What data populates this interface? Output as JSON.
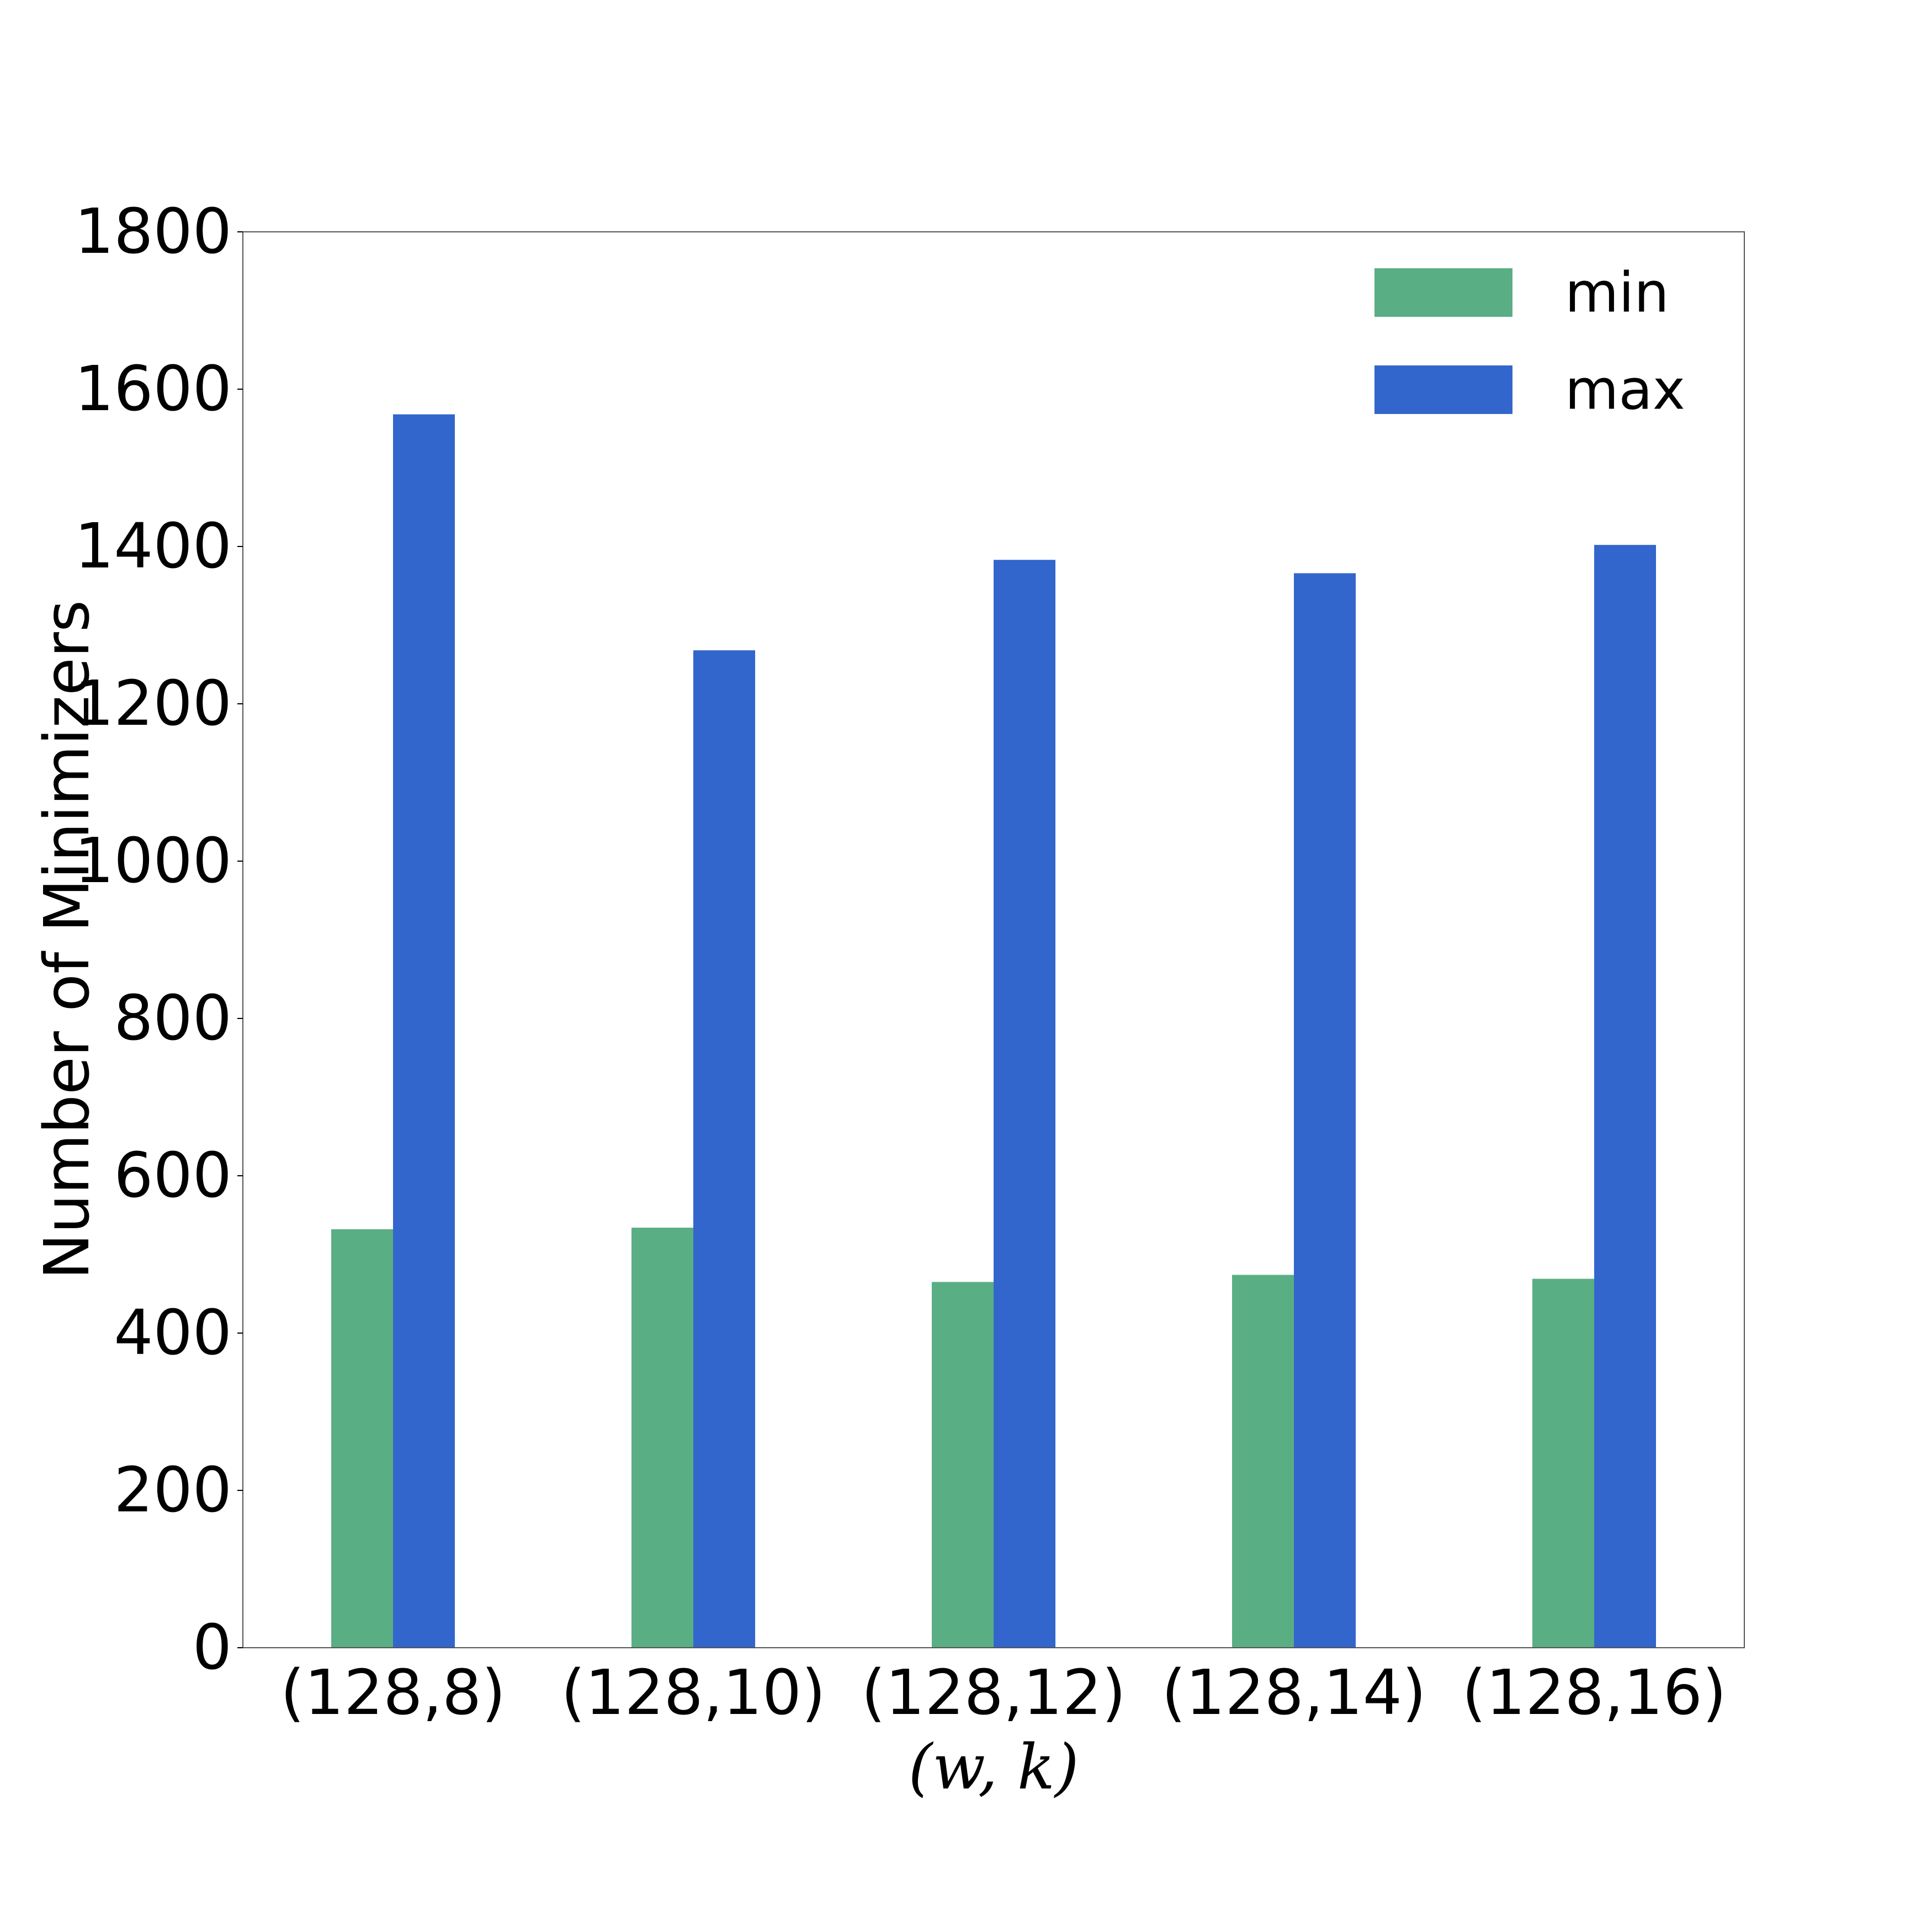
{
  "chart_data": {
    "type": "bar",
    "categories": [
      "(128,8)",
      "(128,10)",
      "(128,12)",
      "(128,14)",
      "(128,16)"
    ],
    "series": [
      {
        "name": "min",
        "color": "#5aae84",
        "values": [
          532,
          534,
          465,
          474,
          469
        ]
      },
      {
        "name": "max",
        "color": "#3366cc",
        "values": [
          1568,
          1268,
          1383,
          1366,
          1402
        ]
      }
    ],
    "xlabel": "(w, k)",
    "ylabel": "Number of Minimizers",
    "ylim": [
      0,
      1800
    ],
    "yticks": [
      0,
      200,
      400,
      600,
      800,
      1000,
      1200,
      1400,
      1600,
      1800
    ],
    "grid": false,
    "legend_position": "top-right"
  }
}
